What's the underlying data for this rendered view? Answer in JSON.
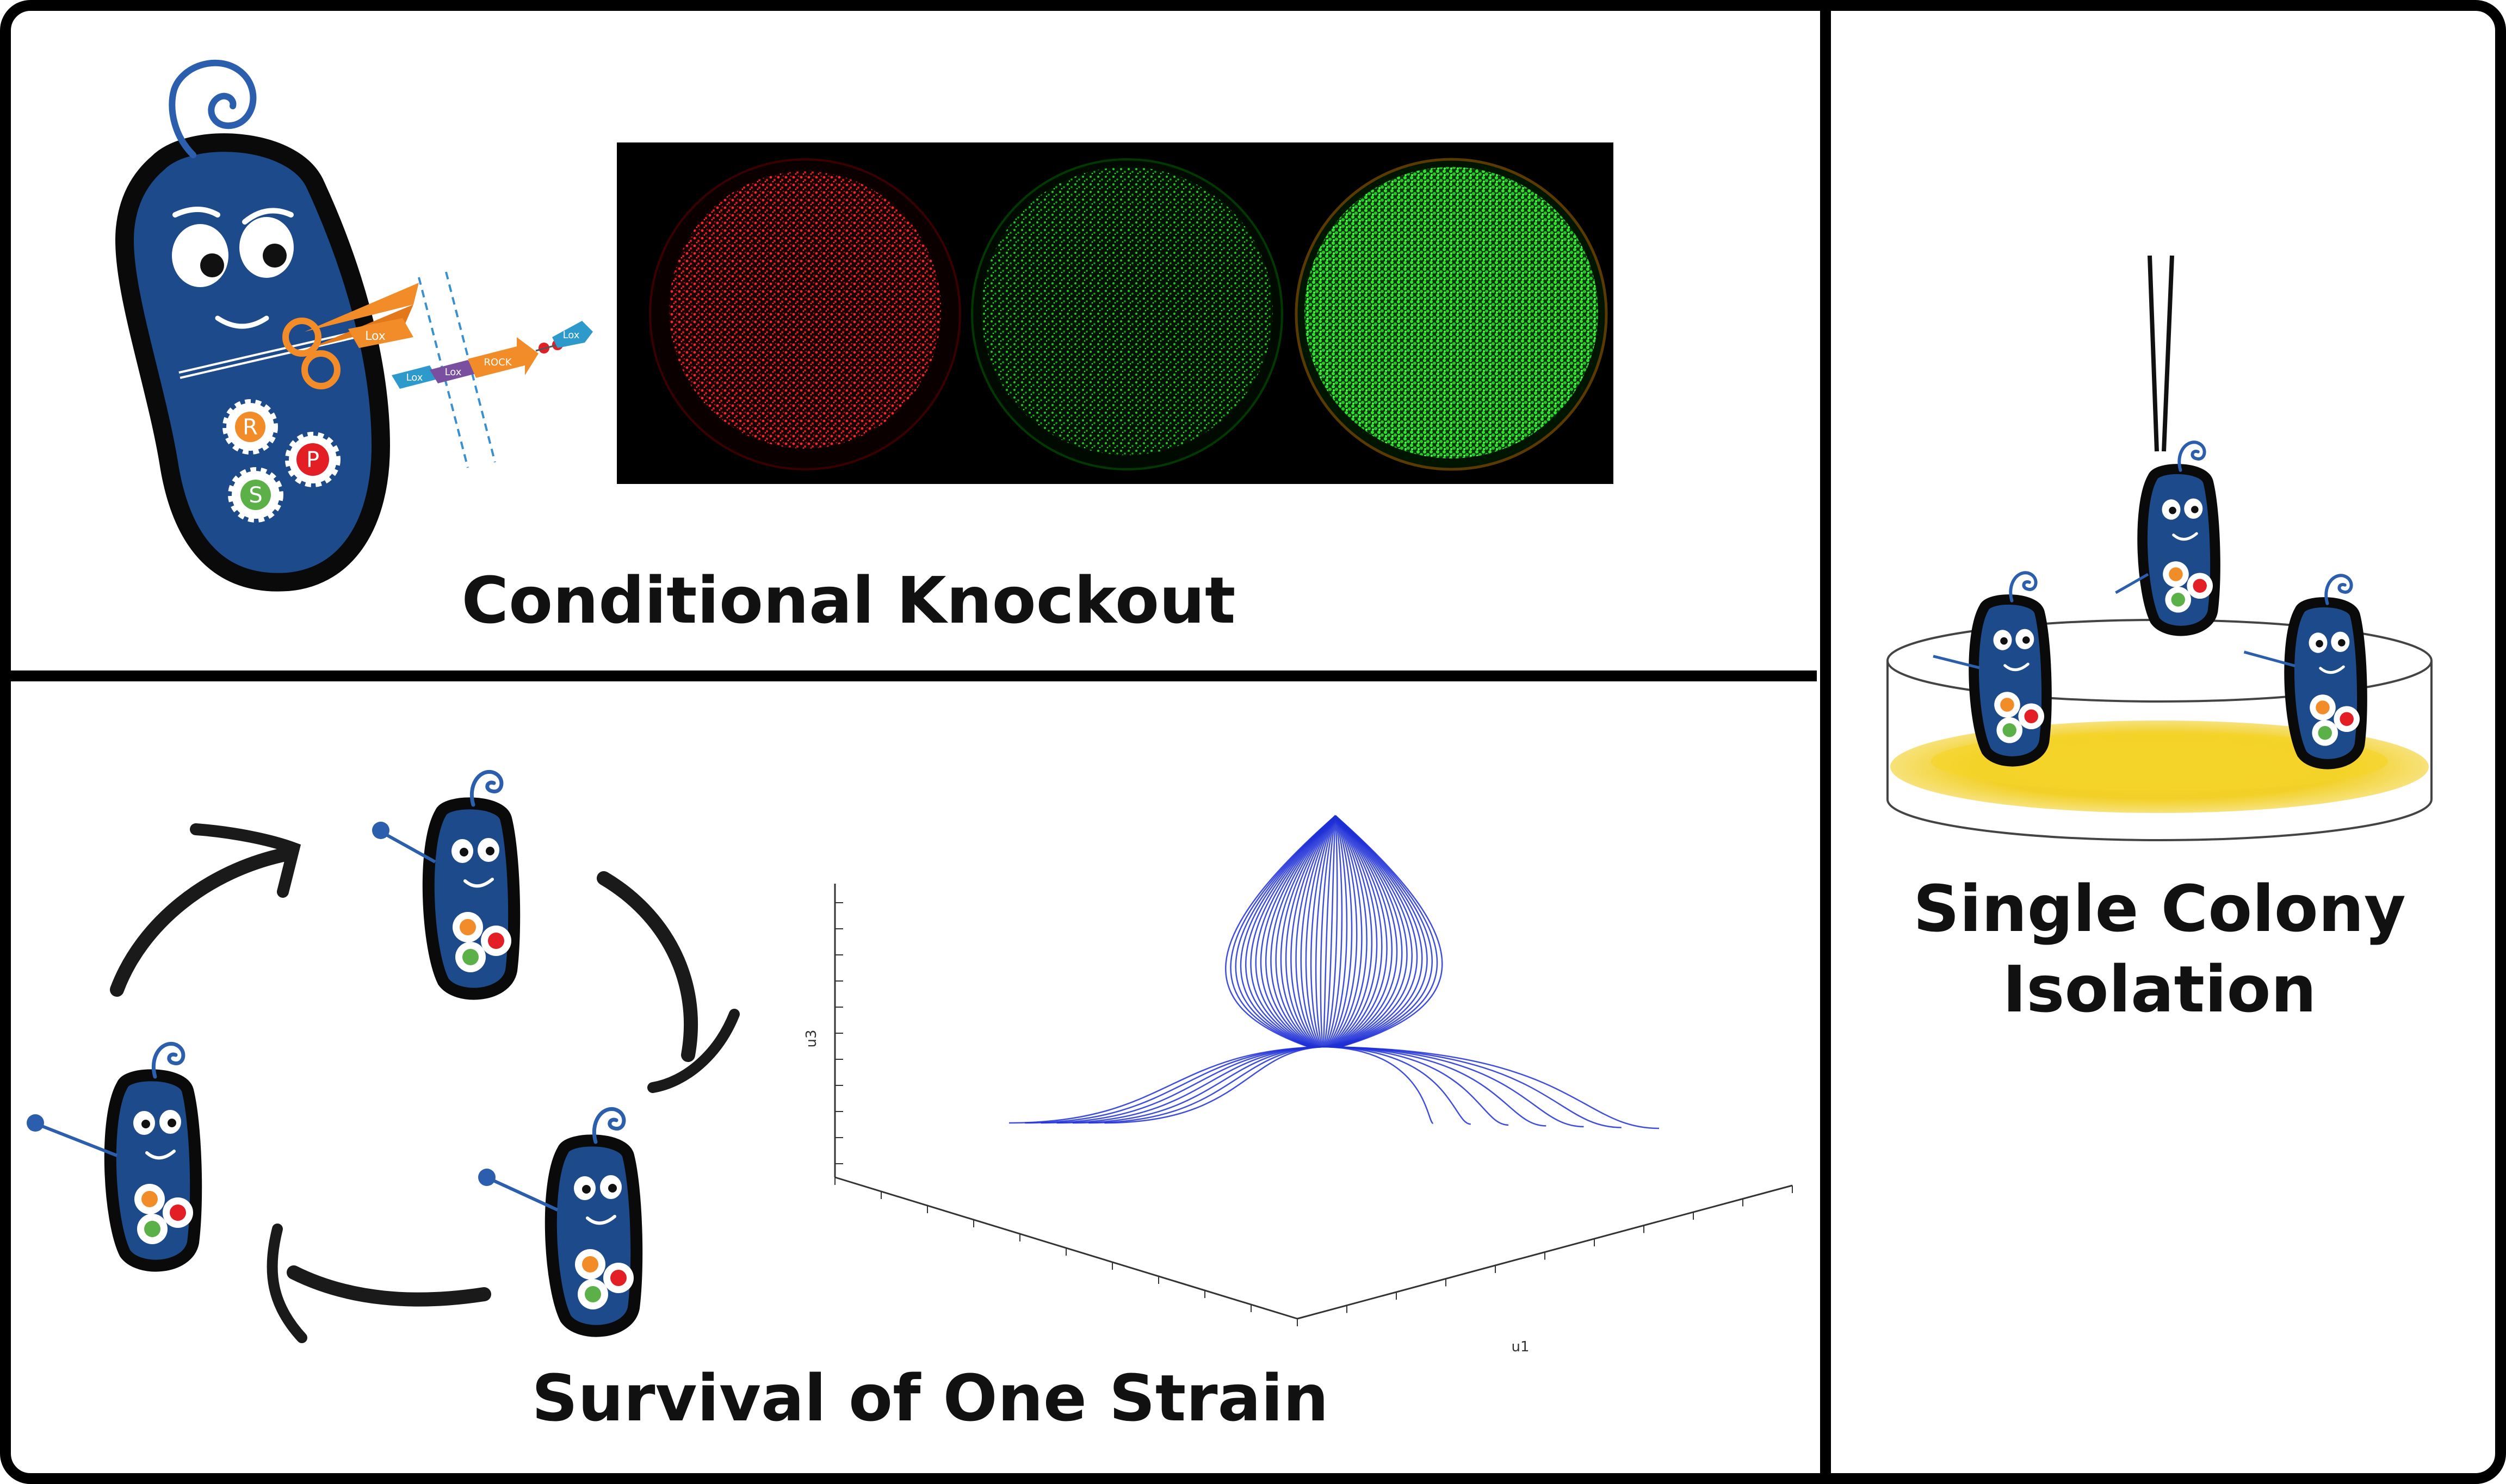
{
  "panels": {
    "conditional_knockout": {
      "caption": "Conditional Knockout"
    },
    "survival": {
      "caption": "Survival of One Strain"
    },
    "single_colony": {
      "caption_line1": "Single Colony",
      "caption_line2": "Isolation"
    }
  },
  "gene_labels": {
    "r": "R",
    "p": "P",
    "s": "S"
  },
  "construct_labels": {
    "lox": "Lox",
    "rock": "ROCK"
  },
  "plot_axis_labels": {
    "vertical": "u3",
    "depth": "u1"
  },
  "colors": {
    "frame": "#000000",
    "bacterium_body": "#1d4a8a",
    "bacterium_outline": "#0a0a0a",
    "spiral": "#2b5fae",
    "gear_orange": "#f28c28",
    "gear_red": "#e31e24",
    "gear_green": "#5bb047",
    "plate_red": "#ff2020",
    "plate_green": "#22ee22",
    "trajectory_blue": "#1f2fd6",
    "agar_yellow": "#f2d028"
  },
  "icons": [
    "scissors-icon",
    "gear-icon",
    "spiral-flagellum-icon",
    "tweezers-icon",
    "petri-dish-icon",
    "cycle-arrow-icon",
    "waving-hand-icon"
  ]
}
